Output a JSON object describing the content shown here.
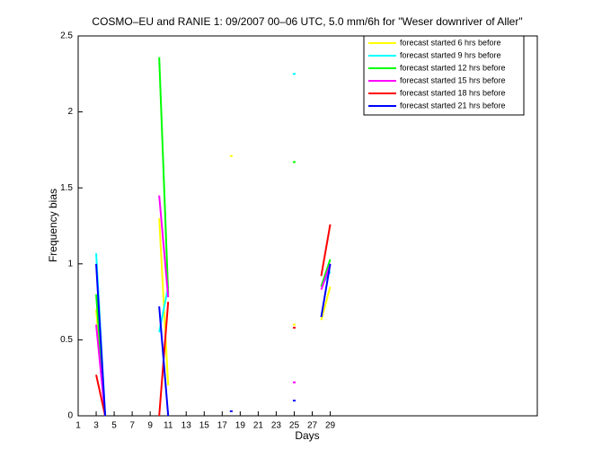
{
  "chart_data": {
    "type": "line",
    "title": "COSMO–EU and RANIE 1: 09/2007 00–06 UTC, 5.0 mm/6h for \"Weser downriver of Aller\"",
    "x_label": "Days",
    "y_label": "Frequency bias",
    "x": [
      3,
      4,
      5,
      10,
      11,
      12,
      18,
      19,
      25,
      26,
      28,
      29
    ],
    "series": [
      {
        "name": "forecast started 6 hrs before",
        "color": "#ffff00",
        "values": [
          0.7,
          0,
          null,
          1.3,
          0.2,
          null,
          1.71,
          null,
          0.6,
          null,
          0.63,
          0.85
        ]
      },
      {
        "name": "forecast started 9 hrs before",
        "color": "#00ffff",
        "values": [
          1.07,
          0,
          null,
          0.55,
          0.85,
          null,
          null,
          null,
          2.25,
          null,
          0.85,
          0.95
        ]
      },
      {
        "name": "forecast started 12 hrs before",
        "color": "#00ff00",
        "values": [
          0.8,
          0,
          null,
          2.36,
          0.8,
          null,
          null,
          null,
          1.67,
          null,
          0.85,
          1.03
        ]
      },
      {
        "name": "forecast started 15 hrs before",
        "color": "#ff00ff",
        "values": [
          0.6,
          0,
          null,
          1.45,
          0.78,
          null,
          null,
          null,
          0.22,
          null,
          0.83,
          1.0
        ]
      },
      {
        "name": "forecast started 18 hrs before",
        "color": "#ff0000",
        "values": [
          0.27,
          0,
          null,
          0,
          0.75,
          null,
          null,
          null,
          0.58,
          null,
          0.92,
          1.26
        ]
      },
      {
        "name": "forecast started 21 hrs before",
        "color": "#0000ff",
        "values": [
          1.0,
          0,
          null,
          0.72,
          0,
          null,
          0.03,
          null,
          0.1,
          null,
          0.65,
          1.0
        ]
      }
    ],
    "xlim": [
      1,
      52
    ],
    "ylim": [
      0,
      2.5
    ],
    "xticks": [
      1,
      3,
      5,
      7,
      9,
      11,
      13,
      15,
      17,
      19,
      21,
      23,
      25,
      27,
      29
    ],
    "yticks": [
      0,
      0.5,
      1,
      1.5,
      2,
      2.5
    ],
    "legend": "top-right"
  }
}
